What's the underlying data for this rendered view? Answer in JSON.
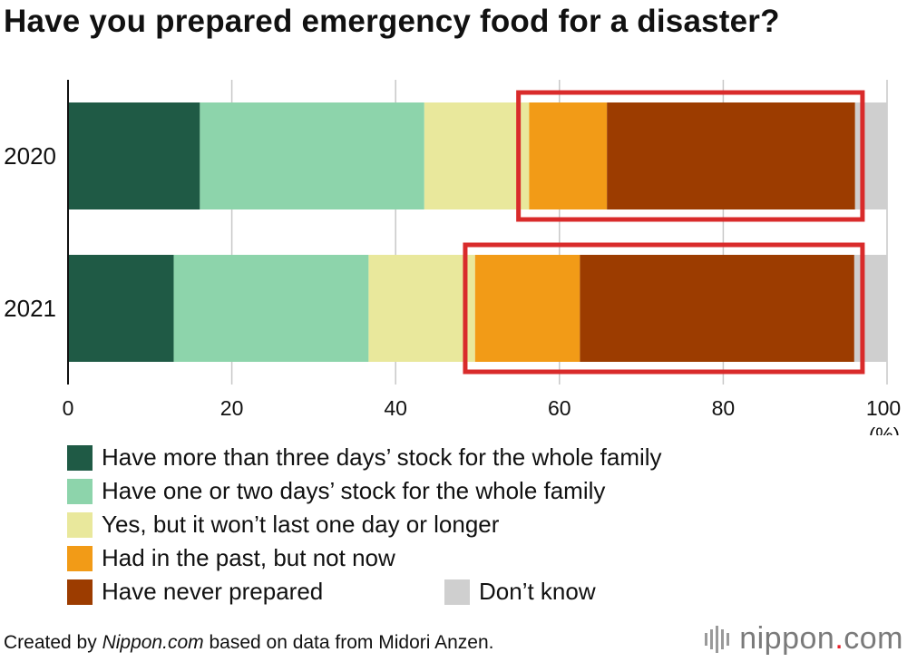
{
  "title": "Have you prepared emergency food for a disaster?",
  "chart_data": {
    "type": "bar",
    "orientation": "horizontal",
    "stacked": true,
    "categories": [
      "2020",
      "2021"
    ],
    "series": [
      {
        "name": "Have more than three days’ stock for the whole family",
        "color": "#1f5a45",
        "values": [
          16.1,
          12.9
        ]
      },
      {
        "name": "Have one or two days’ stock for the whole family",
        "color": "#8dd4ab",
        "values": [
          27.4,
          23.8
        ]
      },
      {
        "name": "Yes, but it won’t last one day or longer",
        "color": "#e9e89c",
        "values": [
          12.8,
          13.0
        ]
      },
      {
        "name": "Had in the past, but not now",
        "color": "#f29b17",
        "values": [
          9.5,
          12.8
        ]
      },
      {
        "name": "Have never prepared",
        "color": "#9c3c00",
        "values": [
          30.3,
          33.5
        ]
      },
      {
        "name": "Don’t know",
        "color": "#cfcfcf",
        "values": [
          3.9,
          4.0
        ]
      }
    ],
    "xlim": [
      0,
      100
    ],
    "xticks": [
      0,
      20,
      40,
      60,
      80,
      100
    ],
    "xunit": "(%)",
    "grid": true,
    "highlight_color": "#d92b2b",
    "highlights": [
      {
        "category": "2020",
        "from": 55,
        "to": 97
      },
      {
        "category": "2021",
        "from": 48.5,
        "to": 97
      }
    ]
  },
  "legend_items": [
    "Have more than three days’ stock for the whole family",
    "Have one or two days’ stock for the whole family",
    "Yes, but it won’t last one day or longer",
    "Had in the past, but not now",
    "Have never prepared",
    "Don’t know"
  ],
  "footer": {
    "prefix": "Created by ",
    "source": "Nippon.com",
    "suffix": " based on data from Midori Anzen."
  },
  "brand": {
    "name": "nippon",
    "dot": ".",
    "tld": "com"
  }
}
